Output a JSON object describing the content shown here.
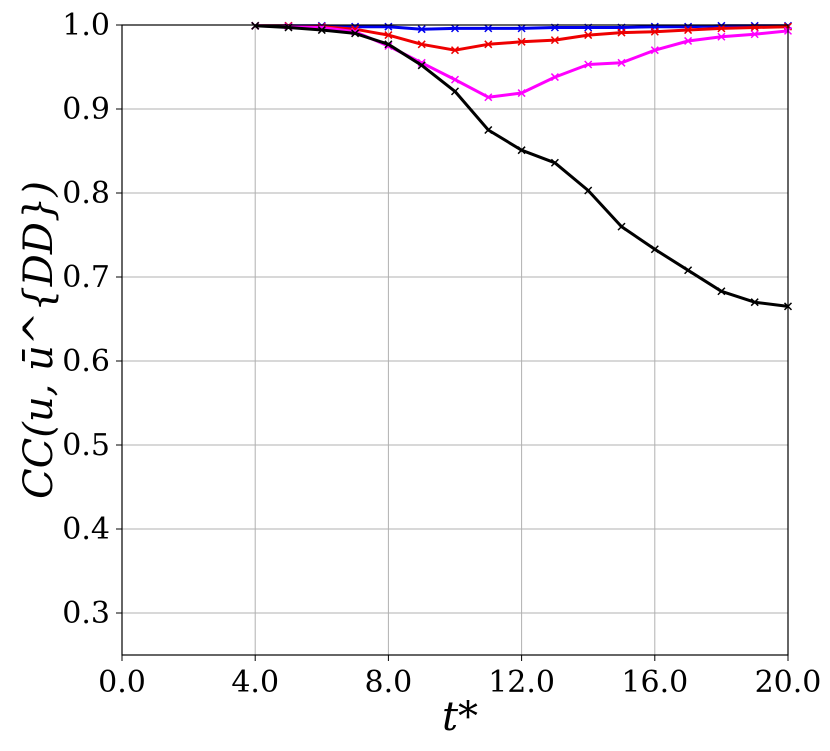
{
  "chart_data": {
    "type": "line",
    "xlabel": "t*",
    "ylabel": "CC(u, ū^{DD})",
    "xlim": [
      0,
      20
    ],
    "ylim": [
      0.25,
      1.0
    ],
    "xticks": [
      "0.0",
      "4.0",
      "8.0",
      "12.0",
      "16.0",
      "20.0"
    ],
    "yticks": [
      "0.3",
      "0.4",
      "0.5",
      "0.6",
      "0.7",
      "0.8",
      "0.9",
      "1.0"
    ],
    "grid": true,
    "x": [
      4,
      5,
      6,
      7,
      8,
      9,
      10,
      11,
      12,
      13,
      14,
      15,
      16,
      17,
      18,
      19,
      20
    ],
    "series": [
      {
        "color": "#0000ee",
        "values": [
          0.999,
          0.999,
          0.999,
          0.998,
          0.998,
          0.995,
          0.996,
          0.996,
          0.996,
          0.997,
          0.997,
          0.997,
          0.998,
          0.998,
          0.999,
          0.999,
          0.999
        ]
      },
      {
        "color": "#ee0000",
        "values": [
          0.999,
          0.999,
          0.998,
          0.995,
          0.988,
          0.977,
          0.97,
          0.977,
          0.98,
          0.982,
          0.988,
          0.991,
          0.992,
          0.994,
          0.996,
          0.997,
          0.998
        ]
      },
      {
        "color": "#ff00ff",
        "values": [
          0.999,
          0.998,
          0.997,
          0.992,
          0.975,
          0.955,
          0.935,
          0.914,
          0.919,
          0.938,
          0.953,
          0.955,
          0.97,
          0.981,
          0.986,
          0.989,
          0.993
        ]
      },
      {
        "color": "#000000",
        "values": [
          0.999,
          0.997,
          0.994,
          0.99,
          0.977,
          0.952,
          0.921,
          0.875,
          0.851,
          0.836,
          0.803,
          0.76,
          0.733,
          0.708,
          0.683,
          0.67,
          0.665
        ]
      }
    ]
  }
}
